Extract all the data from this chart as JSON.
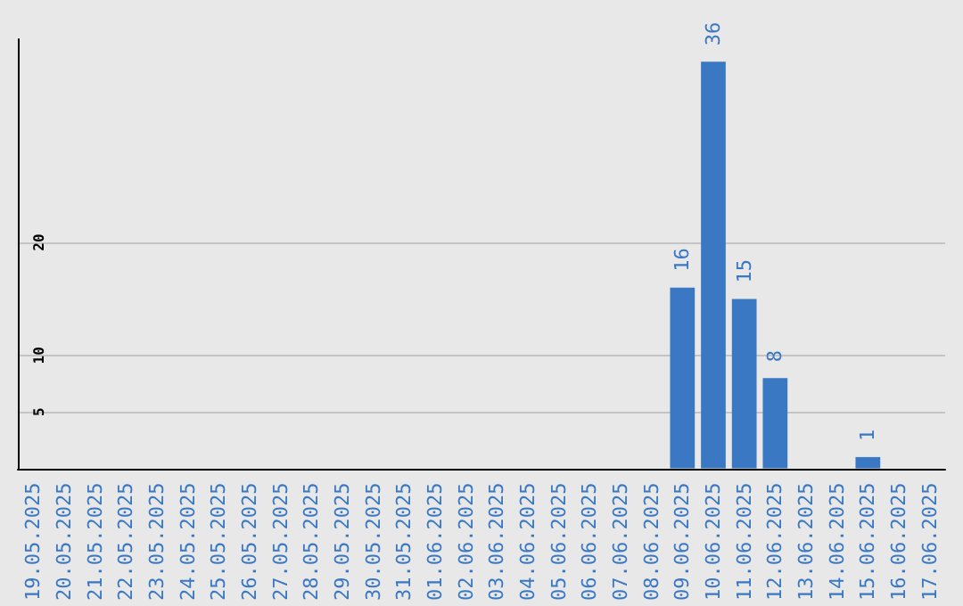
{
  "chart_data": {
    "type": "bar",
    "categories": [
      "19.05.2025",
      "20.05.2025",
      "21.05.2025",
      "22.05.2025",
      "23.05.2025",
      "24.05.2025",
      "25.05.2025",
      "26.05.2025",
      "27.05.2025",
      "28.05.2025",
      "29.05.2025",
      "30.05.2025",
      "31.05.2025",
      "01.06.2025",
      "02.06.2025",
      "03.06.2025",
      "04.06.2025",
      "05.06.2025",
      "06.06.2025",
      "07.06.2025",
      "08.06.2025",
      "09.06.2025",
      "10.06.2025",
      "11.06.2025",
      "12.06.2025",
      "13.06.2025",
      "14.06.2025",
      "15.06.2025",
      "16.06.2025",
      "17.06.2025"
    ],
    "values": [
      0,
      0,
      0,
      0,
      0,
      0,
      0,
      0,
      0,
      0,
      0,
      0,
      0,
      0,
      0,
      0,
      0,
      0,
      0,
      0,
      0,
      16,
      36,
      15,
      8,
      0,
      0,
      1,
      0,
      0
    ],
    "value_labels": [
      null,
      null,
      null,
      null,
      null,
      null,
      null,
      null,
      null,
      null,
      null,
      null,
      null,
      null,
      null,
      null,
      null,
      null,
      null,
      null,
      null,
      "16",
      "36",
      "15",
      "8",
      null,
      null,
      "1",
      null,
      null
    ],
    "color": "#3a78c3",
    "ylim": [
      0,
      38
    ],
    "yticks": [
      5,
      10,
      20
    ],
    "grid": "y"
  }
}
